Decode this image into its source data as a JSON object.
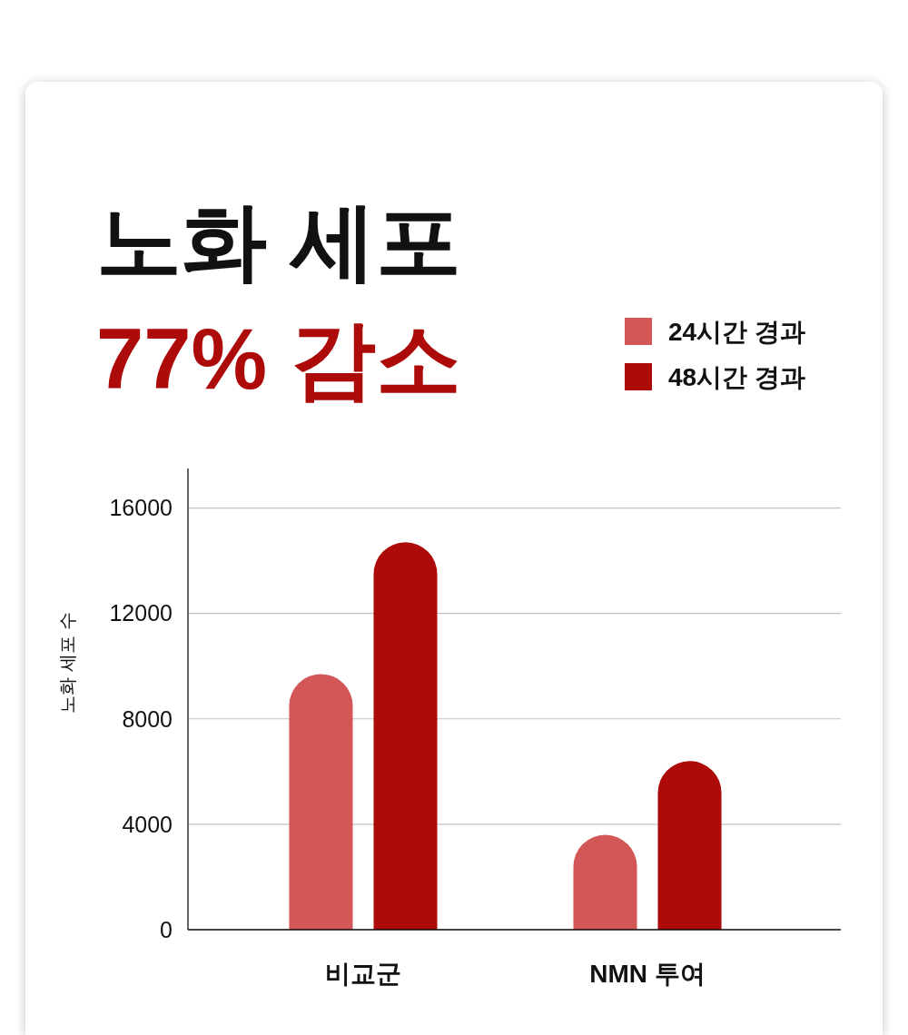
{
  "chart_data": {
    "type": "bar",
    "title": "노화 세포",
    "subtitle": "77% 감소",
    "ylabel": "노화 세포 수",
    "categories": [
      "비교군",
      "NMN 투여"
    ],
    "series": [
      {
        "name": "24시간 경과",
        "color": "#d45757",
        "values": [
          9700,
          3600
        ]
      },
      {
        "name": "48시간 경과",
        "color": "#ad0a0a",
        "values": [
          14700,
          6400
        ]
      }
    ],
    "ylim": [
      0,
      17500
    ],
    "yticks": [
      0,
      4000,
      8000,
      12000,
      16000
    ],
    "grid": "y",
    "legend": "top right"
  }
}
